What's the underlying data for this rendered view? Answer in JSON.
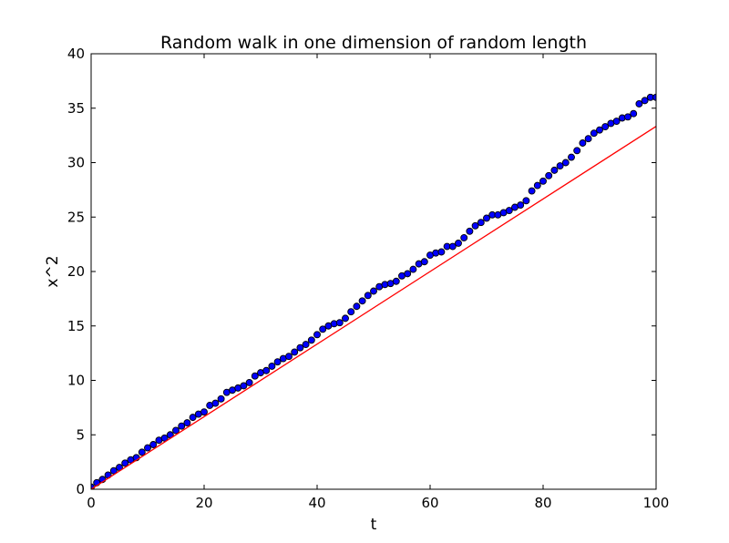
{
  "chart_data": {
    "type": "scatter",
    "title": "Random walk in one dimension of random length",
    "xlabel": "t",
    "ylabel": "x^2",
    "xlim": [
      0,
      100
    ],
    "ylim": [
      0,
      40
    ],
    "xticks": [
      0,
      20,
      40,
      60,
      80,
      100
    ],
    "yticks": [
      0,
      5,
      10,
      15,
      20,
      25,
      30,
      35,
      40
    ],
    "grid": false,
    "series": [
      {
        "type": "scatter",
        "color": "#0000ff",
        "x": [
          0,
          1,
          2,
          3,
          4,
          5,
          6,
          7,
          8,
          9,
          10,
          11,
          12,
          13,
          14,
          15,
          16,
          17,
          18,
          19,
          20,
          21,
          22,
          23,
          24,
          25,
          26,
          27,
          28,
          29,
          30,
          31,
          32,
          33,
          34,
          35,
          36,
          37,
          38,
          39,
          40,
          41,
          42,
          43,
          44,
          45,
          46,
          47,
          48,
          49,
          50,
          51,
          52,
          53,
          54,
          55,
          56,
          57,
          58,
          59,
          60,
          61,
          62,
          63,
          64,
          65,
          66,
          67,
          68,
          69,
          70,
          71,
          72,
          73,
          74,
          75,
          76,
          77,
          78,
          79,
          80,
          81,
          82,
          83,
          84,
          85,
          86,
          87,
          88,
          89,
          90,
          91,
          92,
          93,
          94,
          95,
          96,
          97,
          98,
          99,
          100
        ],
        "y": [
          0.2,
          0.6,
          0.9,
          1.3,
          1.7,
          2.0,
          2.4,
          2.7,
          2.9,
          3.4,
          3.8,
          4.1,
          4.5,
          4.7,
          5.0,
          5.4,
          5.8,
          6.1,
          6.6,
          6.9,
          7.1,
          7.7,
          7.9,
          8.3,
          8.9,
          9.1,
          9.3,
          9.5,
          9.8,
          10.4,
          10.7,
          10.9,
          11.3,
          11.7,
          12.0,
          12.2,
          12.6,
          13.0,
          13.3,
          13.7,
          14.2,
          14.7,
          15.0,
          15.2,
          15.3,
          15.7,
          16.3,
          16.8,
          17.3,
          17.8,
          18.2,
          18.6,
          18.8,
          18.9,
          19.1,
          19.6,
          19.8,
          20.2,
          20.7,
          20.9,
          21.5,
          21.7,
          21.8,
          22.3,
          22.3,
          22.6,
          23.1,
          23.7,
          24.2,
          24.5,
          24.9,
          25.2,
          25.2,
          25.4,
          25.6,
          25.9,
          26.1,
          26.5,
          27.4,
          27.9,
          28.3,
          28.8,
          29.3,
          29.7,
          30.0,
          30.5,
          31.1,
          31.8,
          32.2,
          32.7,
          33.0,
          33.3,
          33.6,
          33.8,
          34.1,
          34.2,
          34.5,
          35.4,
          35.7,
          36.0,
          36.0
        ]
      },
      {
        "type": "line",
        "color": "#ff0000",
        "x": [
          0,
          100
        ],
        "y": [
          0,
          33.33
        ]
      }
    ]
  }
}
